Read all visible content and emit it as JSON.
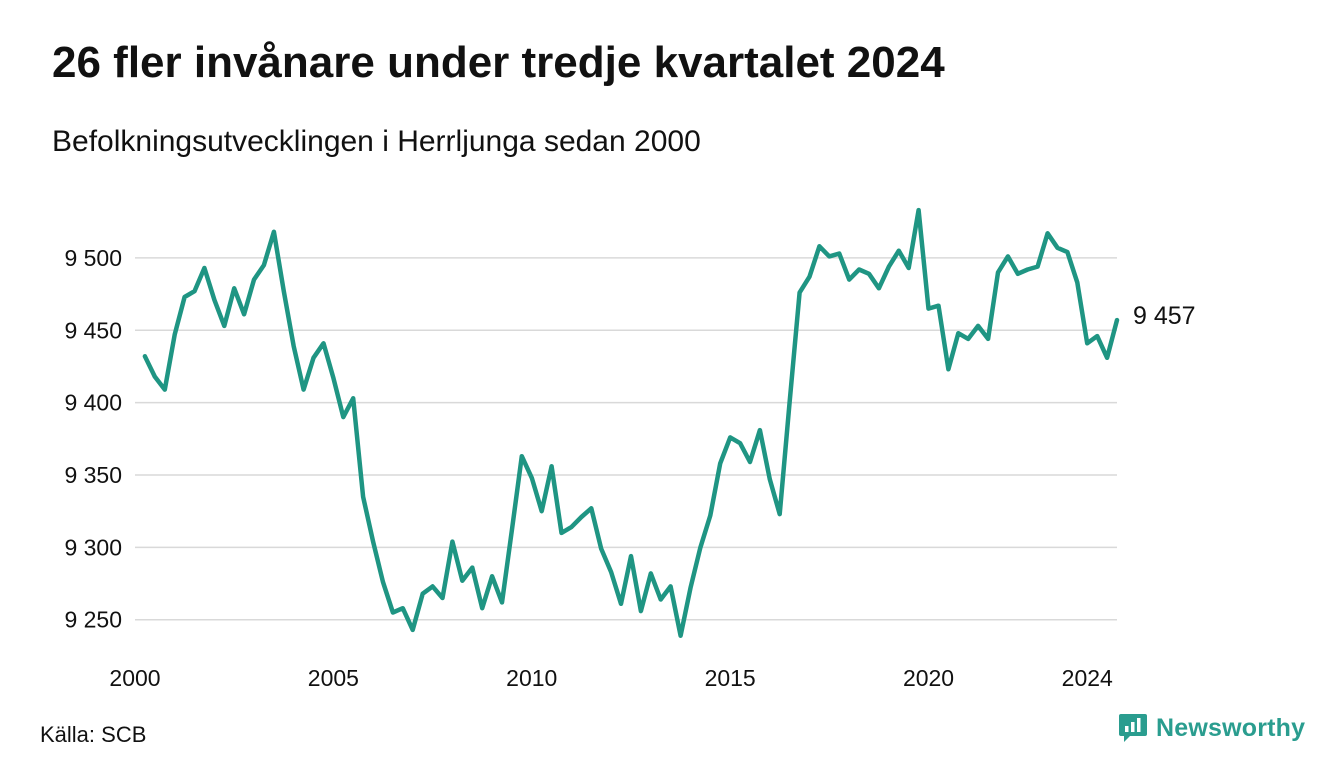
{
  "header": {
    "title": "26 fler invånare under tredje kvartalet 2024",
    "subtitle": "Befolkningsutvecklingen i Herrljunga sedan 2000"
  },
  "footer": {
    "source": "Källa: SCB",
    "brand": "Newsworthy",
    "brand_icon": "chart-speech-bubble-icon"
  },
  "colors": {
    "line": "#1f9583",
    "grid": "#d9d9d9",
    "brand": "#2a9d8f"
  },
  "chart_data": {
    "type": "line",
    "title": "26 fler invånare under tredje kvartalet 2024",
    "subtitle": "Befolkningsutvecklingen i Herrljunga sedan 2000",
    "xlabel": "",
    "ylabel": "",
    "x_ticks": [
      2000,
      2005,
      2010,
      2015,
      2020,
      2024
    ],
    "x_tick_labels": [
      "2000",
      "2005",
      "2010",
      "2015",
      "2020",
      "2024"
    ],
    "y_ticks": [
      9250,
      9300,
      9350,
      9400,
      9450,
      9500
    ],
    "y_tick_labels": [
      "9 250",
      "9 300",
      "9 350",
      "9 400",
      "9 450",
      "9 500"
    ],
    "xlim": [
      2000,
      2024.75
    ],
    "ylim": [
      9236,
      9540
    ],
    "grid": "horizontal",
    "end_label": "9 457",
    "series": [
      {
        "x": [
          2000.25,
          2000.5,
          2000.75,
          2001,
          2001.25,
          2001.5,
          2001.75,
          2002,
          2002.25,
          2002.5,
          2002.75,
          2003,
          2003.25,
          2003.5,
          2003.75,
          2004,
          2004.25,
          2004.5,
          2004.75,
          2005,
          2005.25,
          2005.5,
          2005.75,
          2006,
          2006.25,
          2006.5,
          2006.75,
          2007,
          2007.25,
          2007.5,
          2007.75,
          2008,
          2008.25,
          2008.5,
          2008.75,
          2009,
          2009.25,
          2009.5,
          2009.75,
          2010,
          2010.25,
          2010.5,
          2010.75,
          2011,
          2011.25,
          2011.5,
          2011.75,
          2012,
          2012.25,
          2012.5,
          2012.75,
          2013,
          2013.25,
          2013.5,
          2013.75,
          2014,
          2014.25,
          2014.5,
          2014.75,
          2015,
          2015.25,
          2015.5,
          2015.75,
          2016,
          2016.25,
          2016.5,
          2016.75,
          2017,
          2017.25,
          2017.5,
          2017.75,
          2018,
          2018.25,
          2018.5,
          2018.75,
          2019,
          2019.25,
          2019.5,
          2019.75,
          2020,
          2020.25,
          2020.5,
          2020.75,
          2021,
          2021.25,
          2021.5,
          2021.75,
          2022,
          2022.25,
          2022.5,
          2022.75,
          2023,
          2023.25,
          2023.5,
          2023.75,
          2024,
          2024.25,
          2024.5,
          2024.75
        ],
        "values": [
          9432,
          9418,
          9409,
          9447,
          9473,
          9477,
          9493,
          9471,
          9453,
          9479,
          9461,
          9485,
          9495,
          9518,
          9477,
          9439,
          9409,
          9431,
          9441,
          9417,
          9390,
          9403,
          9335,
          9304,
          9276,
          9255,
          9258,
          9243,
          9268,
          9273,
          9265,
          9304,
          9277,
          9286,
          9258,
          9280,
          9262,
          9312,
          9363,
          9348,
          9325,
          9356,
          9310,
          9314,
          9321,
          9327,
          9299,
          9283,
          9261,
          9294,
          9256,
          9282,
          9264,
          9273,
          9239,
          9272,
          9300,
          9322,
          9358,
          9376,
          9372,
          9359,
          9381,
          9347,
          9323,
          9401,
          9476,
          9487,
          9508,
          9501,
          9503,
          9485,
          9492,
          9489,
          9479,
          9494,
          9505,
          9493,
          9533,
          9465,
          9467,
          9423,
          9448,
          9444,
          9453,
          9444,
          9490,
          9501,
          9489,
          9492,
          9494,
          9517,
          9507,
          9504,
          9483,
          9441,
          9446,
          9431,
          9457
        ]
      }
    ]
  }
}
